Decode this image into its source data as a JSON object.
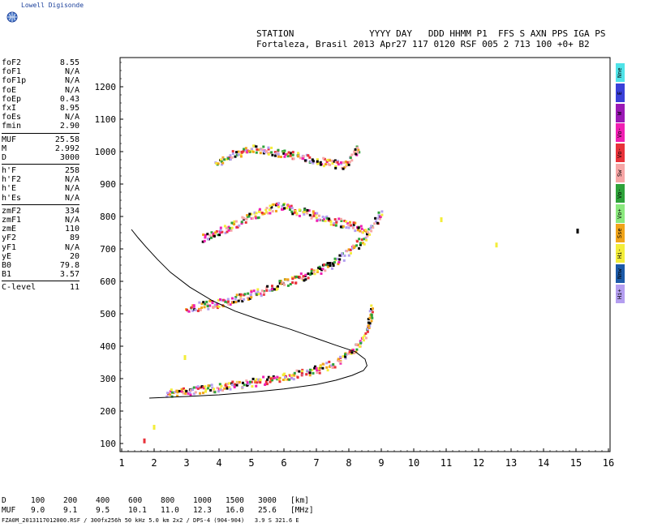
{
  "logo": {
    "text": "Lowell Digisonde",
    "icon": "globe-icon"
  },
  "header": {
    "line1": "STATION              YYYY DAY   DDD HHMM P1  FFS S AXN PPS IGA PS",
    "line2": "Fortaleza, Brasil 2013 Apr27 117 0120 RSF 005 2 713 100 +0+ B2"
  },
  "params": [
    [
      {
        "k": "foF2",
        "v": "8.55"
      },
      {
        "k": "foF1",
        "v": "N/A"
      },
      {
        "k": "foF1p",
        "v": "N/A"
      },
      {
        "k": "foE",
        "v": "N/A"
      },
      {
        "k": "foEp",
        "v": "0.43"
      },
      {
        "k": "fxI",
        "v": "8.95"
      },
      {
        "k": "foEs",
        "v": "N/A"
      },
      {
        "k": "fmin",
        "v": "2.90"
      }
    ],
    [
      {
        "k": "MUF",
        "v": "25.58"
      },
      {
        "k": "M",
        "v": "2.992"
      },
      {
        "k": "D",
        "v": "3000"
      }
    ],
    [
      {
        "k": "h'F",
        "v": "258"
      },
      {
        "k": "h'F2",
        "v": "N/A"
      },
      {
        "k": "h'E",
        "v": "N/A"
      },
      {
        "k": "h'Es",
        "v": "N/A"
      }
    ],
    [
      {
        "k": "zmF2",
        "v": "334"
      },
      {
        "k": "zmF1",
        "v": "N/A"
      },
      {
        "k": "zmE",
        "v": "110"
      },
      {
        "k": "yF2",
        "v": "89"
      },
      {
        "k": "yF1",
        "v": "N/A"
      },
      {
        "k": "yE",
        "v": "20"
      },
      {
        "k": "B0",
        "v": "79.8"
      },
      {
        "k": "B1",
        "v": "3.57"
      }
    ],
    [
      {
        "k": "C-level",
        "v": "11"
      }
    ]
  ],
  "legend": [
    {
      "label": "Nne",
      "color": "#4fe3e8"
    },
    {
      "label": "E",
      "color": "#3a40d8"
    },
    {
      "label": "W",
      "color": "#9b19b5"
    },
    {
      "label": "Vo-",
      "color": "#f01fb2"
    },
    {
      "label": "Vo-",
      "color": "#e8323a"
    },
    {
      "label": "Sw",
      "color": "#f6a6a6"
    },
    {
      "label": "Vo-",
      "color": "#2ea23a"
    },
    {
      "label": "Vo+",
      "color": "#8ae87d"
    },
    {
      "label": "Sse",
      "color": "#f0a41a"
    },
    {
      "label": "Hi-",
      "color": "#f3ed3a"
    },
    {
      "label": "Nnw",
      "color": "#1c5aa8"
    },
    {
      "label": "Hi+",
      "color": "#b49ef0"
    }
  ],
  "muf_table": {
    "d_label": "D",
    "muf_label": "MUF",
    "distances": [
      "100",
      "200",
      "400",
      "600",
      "800",
      "1000",
      "1500",
      "3000"
    ],
    "mufs": [
      "9.0",
      "9.1",
      "9.5",
      "10.1",
      "11.0",
      "12.3",
      "16.0",
      "25.6"
    ],
    "d_unit": "[km]",
    "muf_unit": "[MHz]"
  },
  "footer": "FZA0M_2013117012000.RSF / 300fx256h 50 kHz 5.0 km 2x2 / DPS-4 (904-904)   3.9 S 321.6 E",
  "chart_data": {
    "type": "scatter",
    "title": "",
    "xlabel": "",
    "ylabel": "",
    "xlim": [
      1,
      16.2
    ],
    "ylim": [
      60,
      1290
    ],
    "x_ticks": [
      1,
      2,
      3,
      4,
      5,
      6,
      7,
      8,
      9,
      10,
      11,
      12,
      13,
      14,
      15,
      16
    ],
    "y_ticks": [
      100,
      200,
      300,
      400,
      500,
      600,
      700,
      800,
      900,
      1000,
      1100,
      1200
    ],
    "traces": [
      {
        "name": "F-layer echo 1",
        "points": [
          [
            2.4,
            258
          ],
          [
            2.8,
            262
          ],
          [
            3.2,
            266
          ],
          [
            3.6,
            270
          ],
          [
            4.0,
            276
          ],
          [
            4.4,
            282
          ],
          [
            4.8,
            288
          ],
          [
            5.2,
            294
          ],
          [
            5.6,
            300
          ],
          [
            6.0,
            306
          ],
          [
            6.4,
            316
          ],
          [
            6.8,
            326
          ],
          [
            7.2,
            338
          ],
          [
            7.6,
            354
          ],
          [
            7.9,
            372
          ],
          [
            8.1,
            390
          ],
          [
            8.3,
            410
          ],
          [
            8.5,
            440
          ],
          [
            8.6,
            470
          ],
          [
            8.65,
            500
          ],
          [
            8.7,
            530
          ]
        ]
      },
      {
        "name": "F-layer echo 2",
        "points": [
          [
            3.0,
            520
          ],
          [
            3.4,
            526
          ],
          [
            3.8,
            532
          ],
          [
            4.2,
            540
          ],
          [
            4.6,
            552
          ],
          [
            5.0,
            564
          ],
          [
            5.4,
            576
          ],
          [
            5.8,
            590
          ],
          [
            6.2,
            604
          ],
          [
            6.6,
            618
          ],
          [
            7.0,
            636
          ],
          [
            7.4,
            654
          ],
          [
            7.8,
            680
          ],
          [
            8.1,
            704
          ],
          [
            8.4,
            730
          ],
          [
            8.6,
            760
          ]
        ]
      },
      {
        "name": "F-layer echo 3",
        "points": [
          [
            3.5,
            735
          ],
          [
            3.9,
            750
          ],
          [
            4.3,
            770
          ],
          [
            4.7,
            790
          ],
          [
            5.1,
            808
          ],
          [
            5.5,
            822
          ],
          [
            5.8,
            835
          ],
          [
            8.6,
            760
          ],
          [
            8.9,
            800
          ],
          [
            9.0,
            818
          ]
        ]
      },
      {
        "name": "F-layer echo 4",
        "points": [
          [
            3.9,
            965
          ],
          [
            4.2,
            985
          ],
          [
            4.6,
            1000
          ],
          [
            5.0,
            1015
          ],
          [
            7.8,
            960
          ],
          [
            8.0,
            980
          ],
          [
            8.2,
            1005
          ],
          [
            8.3,
            1015
          ]
        ]
      }
    ],
    "profile": [
      [
        1.85,
        240
      ],
      [
        3.0,
        245
      ],
      [
        4.0,
        250
      ],
      [
        5.0,
        258
      ],
      [
        6.0,
        268
      ],
      [
        7.0,
        282
      ],
      [
        7.6,
        295
      ],
      [
        8.1,
        310
      ],
      [
        8.45,
        325
      ],
      [
        8.56,
        340
      ],
      [
        8.5,
        360
      ],
      [
        8.2,
        383
      ],
      [
        7.6,
        403
      ],
      [
        7.0,
        424
      ],
      [
        6.2,
        452
      ],
      [
        5.3,
        480
      ],
      [
        4.5,
        508
      ],
      [
        3.8,
        540
      ],
      [
        3.1,
        582
      ],
      [
        2.5,
        628
      ],
      [
        2.1,
        668
      ],
      [
        1.75,
        706
      ],
      [
        1.5,
        735
      ],
      [
        1.3,
        760
      ]
    ],
    "isolated_points": [
      [
        1.7,
        108
      ],
      [
        2.0,
        150
      ],
      [
        2.95,
        365
      ],
      [
        10.85,
        790
      ],
      [
        12.55,
        712
      ],
      [
        15.05,
        755
      ]
    ],
    "grid": false,
    "legend": "right"
  }
}
